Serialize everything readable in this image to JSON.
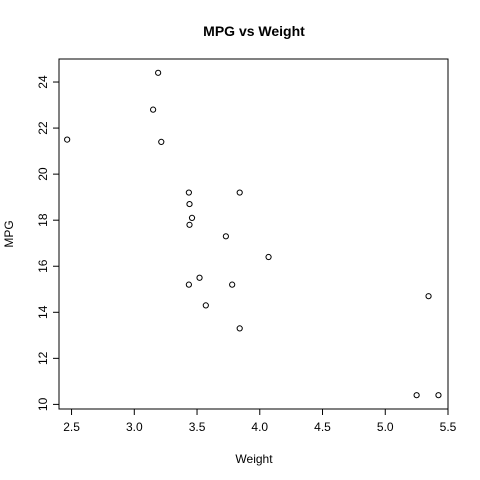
{
  "chart_data": {
    "type": "scatter",
    "title": "MPG vs Weight",
    "xlabel": "Weight",
    "ylabel": "MPG",
    "xlim": [
      2.4,
      5.5
    ],
    "ylim": [
      9.8,
      25
    ],
    "xticks": [
      2.5,
      3.0,
      3.5,
      4.0,
      4.5,
      5.0,
      5.5
    ],
    "xtick_labels": [
      "2.5",
      "3.0",
      "3.5",
      "4.0",
      "4.5",
      "5.0",
      "5.5"
    ],
    "yticks": [
      10,
      12,
      14,
      16,
      18,
      20,
      22,
      24
    ],
    "ytick_labels": [
      "10",
      "12",
      "14",
      "16",
      "18",
      "20",
      "22",
      "24"
    ],
    "grid": false,
    "points": [
      {
        "x": 2.465,
        "y": 21.5
      },
      {
        "x": 3.15,
        "y": 22.8
      },
      {
        "x": 3.19,
        "y": 24.4
      },
      {
        "x": 3.215,
        "y": 21.4
      },
      {
        "x": 3.435,
        "y": 19.2
      },
      {
        "x": 3.44,
        "y": 18.7
      },
      {
        "x": 3.46,
        "y": 18.1
      },
      {
        "x": 3.44,
        "y": 17.8
      },
      {
        "x": 3.84,
        "y": 19.2
      },
      {
        "x": 3.73,
        "y": 17.3
      },
      {
        "x": 4.07,
        "y": 16.4
      },
      {
        "x": 3.52,
        "y": 15.5
      },
      {
        "x": 3.435,
        "y": 15.2
      },
      {
        "x": 3.78,
        "y": 15.2
      },
      {
        "x": 3.57,
        "y": 14.3
      },
      {
        "x": 3.84,
        "y": 13.3
      },
      {
        "x": 5.345,
        "y": 14.7
      },
      {
        "x": 5.25,
        "y": 10.4
      },
      {
        "x": 5.424,
        "y": 10.4
      }
    ]
  }
}
